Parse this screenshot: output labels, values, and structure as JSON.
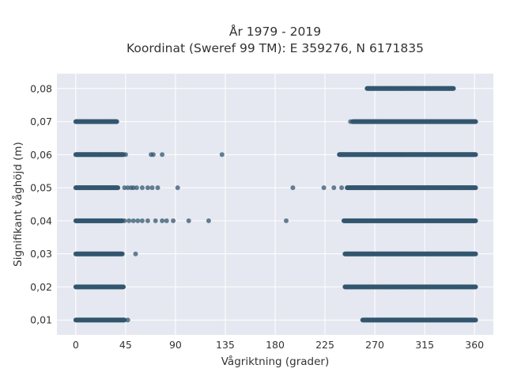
{
  "chart_data": {
    "type": "scatter",
    "title_line1": "År 1979 - 2019",
    "title_line2": "Koordinat (Sweref 99 TM): E 359276, N 6171835",
    "xlabel": "Vågriktning (grader)",
    "ylabel": "Signifikant våghöjd (m)",
    "xlim": [
      -17,
      377
    ],
    "ylim": [
      0.0055,
      0.0845
    ],
    "xticks": [
      0,
      45,
      90,
      135,
      180,
      225,
      270,
      315,
      360
    ],
    "xtick_labels": [
      "0",
      "45",
      "90",
      "135",
      "180",
      "225",
      "270",
      "315",
      "360"
    ],
    "yticks": [
      0.01,
      0.02,
      0.03,
      0.04,
      0.05,
      0.06,
      0.07,
      0.08
    ],
    "ytick_labels": [
      "0,01",
      "0,02",
      "0,03",
      "0,04",
      "0,05",
      "0,06",
      "0,07",
      "0,08"
    ],
    "grid": true,
    "background": "#e5e8f0",
    "marker_color": "#33576f",
    "bands": [
      {
        "y": 0.08,
        "ranges": [
          [
            263,
            341
          ]
        ]
      },
      {
        "y": 0.07,
        "ranges": [
          [
            0,
            37
          ],
          [
            250,
            361
          ]
        ]
      },
      {
        "y": 0.06,
        "ranges": [
          [
            0,
            43
          ],
          [
            238,
            361
          ]
        ]
      },
      {
        "y": 0.05,
        "ranges": [
          [
            0,
            38
          ],
          [
            245,
            361
          ]
        ]
      },
      {
        "y": 0.04,
        "ranges": [
          [
            0,
            42
          ],
          [
            242,
            361
          ]
        ]
      },
      {
        "y": 0.03,
        "ranges": [
          [
            0,
            42
          ],
          [
            243,
            361
          ]
        ]
      },
      {
        "y": 0.02,
        "ranges": [
          [
            0,
            43
          ],
          [
            243,
            361
          ]
        ]
      },
      {
        "y": 0.01,
        "ranges": [
          [
            0,
            44
          ],
          [
            259,
            361
          ]
        ]
      }
    ],
    "scattered_points": [
      {
        "x": 5,
        "y": 0.07
      },
      {
        "x": 10,
        "y": 0.07
      },
      {
        "x": 27,
        "y": 0.07
      },
      {
        "x": 30,
        "y": 0.07
      },
      {
        "x": 32,
        "y": 0.07
      },
      {
        "x": 36,
        "y": 0.07
      },
      {
        "x": 248,
        "y": 0.07
      },
      {
        "x": 45,
        "y": 0.06
      },
      {
        "x": 68,
        "y": 0.06
      },
      {
        "x": 70,
        "y": 0.06
      },
      {
        "x": 78,
        "y": 0.06
      },
      {
        "x": 132,
        "y": 0.06
      },
      {
        "x": 238,
        "y": 0.06
      },
      {
        "x": 241,
        "y": 0.06
      },
      {
        "x": 44,
        "y": 0.05
      },
      {
        "x": 47,
        "y": 0.05
      },
      {
        "x": 50,
        "y": 0.05
      },
      {
        "x": 52,
        "y": 0.05
      },
      {
        "x": 55,
        "y": 0.05
      },
      {
        "x": 60,
        "y": 0.05
      },
      {
        "x": 65,
        "y": 0.05
      },
      {
        "x": 69,
        "y": 0.05
      },
      {
        "x": 74,
        "y": 0.05
      },
      {
        "x": 92,
        "y": 0.05
      },
      {
        "x": 196,
        "y": 0.05
      },
      {
        "x": 224,
        "y": 0.05
      },
      {
        "x": 233,
        "y": 0.05
      },
      {
        "x": 240,
        "y": 0.05
      },
      {
        "x": 44,
        "y": 0.04
      },
      {
        "x": 48,
        "y": 0.04
      },
      {
        "x": 52,
        "y": 0.04
      },
      {
        "x": 56,
        "y": 0.04
      },
      {
        "x": 60,
        "y": 0.04
      },
      {
        "x": 65,
        "y": 0.04
      },
      {
        "x": 72,
        "y": 0.04
      },
      {
        "x": 78,
        "y": 0.04
      },
      {
        "x": 82,
        "y": 0.04
      },
      {
        "x": 88,
        "y": 0.04
      },
      {
        "x": 102,
        "y": 0.04
      },
      {
        "x": 120,
        "y": 0.04
      },
      {
        "x": 190,
        "y": 0.04
      },
      {
        "x": 54,
        "y": 0.03
      },
      {
        "x": 47,
        "y": 0.01
      }
    ]
  }
}
